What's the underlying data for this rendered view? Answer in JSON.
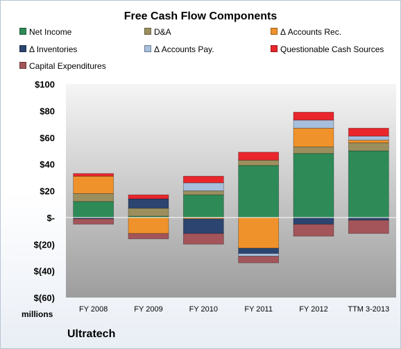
{
  "chart_data": {
    "type": "bar",
    "stacked": true,
    "title": "Free Cash Flow Components",
    "units_label": "millions",
    "company": "Ultratech",
    "categories": [
      "FY 2008",
      "FY 2009",
      "FY 2010",
      "FY 2011",
      "FY 2012",
      "TTM 3-2013"
    ],
    "ylim": [
      -60,
      100
    ],
    "yticks": [
      100,
      80,
      60,
      40,
      20,
      0,
      -20,
      -40,
      -60
    ],
    "ytick_labels": [
      "$100",
      "$80",
      "$60",
      "$40",
      "$20",
      "$-",
      "$(20)",
      "$(40)",
      "$(60)"
    ],
    "grid": false,
    "legend_position": "top",
    "series": [
      {
        "name": "Net Income",
        "color": "#2e8b57",
        "values": [
          12,
          1,
          17,
          39,
          48,
          50
        ]
      },
      {
        "name": "D&A",
        "color": "#9c8f5e",
        "values": [
          6,
          6,
          3,
          4,
          5,
          6
        ]
      },
      {
        "name": "Δ Accounts Rec.",
        "color": "#f0922b",
        "values": [
          13,
          -12,
          -1,
          -23,
          14,
          2
        ]
      },
      {
        "name": "Δ Inventories",
        "color": "#2b4570",
        "values": [
          -1,
          7,
          -11,
          -4,
          -5,
          -2
        ]
      },
      {
        "name": "Δ Accounts Pay.",
        "color": "#a7bfdc",
        "values": [
          0,
          0,
          6,
          -2,
          6,
          3
        ]
      },
      {
        "name": "Questionable Cash Sources",
        "color": "#e8262c",
        "values": [
          2,
          3,
          5,
          6,
          6,
          6
        ]
      },
      {
        "name": "Capital Expenditures",
        "color": "#a3555a",
        "values": [
          -4,
          -4,
          -8,
          -5,
          -9,
          -10
        ]
      }
    ]
  }
}
